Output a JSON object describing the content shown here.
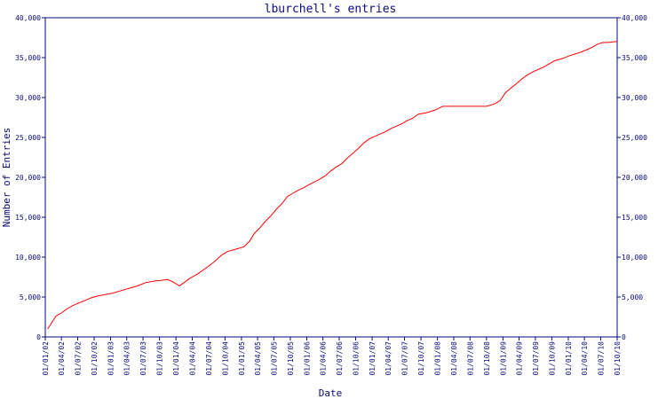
{
  "chart_data": {
    "type": "line",
    "title": "lburchell's entries",
    "xlabel": "Date",
    "ylabel": "Number of Entries",
    "ylim": [
      0,
      40000
    ],
    "y_ticks": [
      {
        "value": 0,
        "label": "0"
      },
      {
        "value": 5000,
        "label": "5,000"
      },
      {
        "value": 10000,
        "label": "10,000"
      },
      {
        "value": 15000,
        "label": "15,000"
      },
      {
        "value": 20000,
        "label": "20,000"
      },
      {
        "value": 25000,
        "label": "25,000"
      },
      {
        "value": 30000,
        "label": "30,000"
      },
      {
        "value": 35000,
        "label": "35,000"
      },
      {
        "value": 40000,
        "label": "40,000"
      }
    ],
    "x_range": [
      "2002-01-01",
      "2010-10-01"
    ],
    "x_ticks": [
      {
        "date": "2002-01-01",
        "label": "01/01/02"
      },
      {
        "date": "2002-04-01",
        "label": "01/04/02"
      },
      {
        "date": "2002-07-01",
        "label": "01/07/02"
      },
      {
        "date": "2002-10-01",
        "label": "01/10/02"
      },
      {
        "date": "2003-01-01",
        "label": "01/01/03"
      },
      {
        "date": "2003-04-01",
        "label": "01/04/03"
      },
      {
        "date": "2003-07-01",
        "label": "01/07/03"
      },
      {
        "date": "2003-10-01",
        "label": "01/10/03"
      },
      {
        "date": "2004-01-01",
        "label": "01/01/04"
      },
      {
        "date": "2004-04-01",
        "label": "01/04/04"
      },
      {
        "date": "2004-07-01",
        "label": "01/07/04"
      },
      {
        "date": "2004-10-01",
        "label": "01/10/04"
      },
      {
        "date": "2005-01-01",
        "label": "01/01/05"
      },
      {
        "date": "2005-04-01",
        "label": "01/04/05"
      },
      {
        "date": "2005-07-01",
        "label": "01/07/05"
      },
      {
        "date": "2005-10-01",
        "label": "01/10/05"
      },
      {
        "date": "2006-01-01",
        "label": "01/01/06"
      },
      {
        "date": "2006-04-01",
        "label": "01/04/06"
      },
      {
        "date": "2006-07-01",
        "label": "01/07/06"
      },
      {
        "date": "2006-10-01",
        "label": "01/10/06"
      },
      {
        "date": "2007-01-01",
        "label": "01/01/07"
      },
      {
        "date": "2007-04-01",
        "label": "01/04/07"
      },
      {
        "date": "2007-07-01",
        "label": "01/07/07"
      },
      {
        "date": "2007-10-01",
        "label": "01/10/07"
      },
      {
        "date": "2008-01-01",
        "label": "01/01/08"
      },
      {
        "date": "2008-04-01",
        "label": "01/04/08"
      },
      {
        "date": "2008-07-01",
        "label": "01/07/08"
      },
      {
        "date": "2008-10-01",
        "label": "01/10/08"
      },
      {
        "date": "2009-01-01",
        "label": "01/01/09"
      },
      {
        "date": "2009-04-01",
        "label": "01/04/09"
      },
      {
        "date": "2009-07-01",
        "label": "01/07/09"
      },
      {
        "date": "2009-10-01",
        "label": "01/10/09"
      },
      {
        "date": "2010-01-01",
        "label": "01/01/10"
      },
      {
        "date": "2010-04-01",
        "label": "01/04/10"
      },
      {
        "date": "2010-07-01",
        "label": "01/07/10"
      },
      {
        "date": "2010-10-01",
        "label": "01/10/10"
      }
    ],
    "series": [
      {
        "color": "#ff0000",
        "points": [
          [
            "2002-01-15",
            1000
          ],
          [
            "2002-03-01",
            2600
          ],
          [
            "2002-04-01",
            3000
          ],
          [
            "2002-05-01",
            3500
          ],
          [
            "2002-06-01",
            3900
          ],
          [
            "2002-07-01",
            4200
          ],
          [
            "2002-08-15",
            4600
          ],
          [
            "2002-09-15",
            4900
          ],
          [
            "2002-10-15",
            5100
          ],
          [
            "2002-12-01",
            5300
          ],
          [
            "2003-01-15",
            5500
          ],
          [
            "2003-03-01",
            5800
          ],
          [
            "2003-04-15",
            6100
          ],
          [
            "2003-06-01",
            6400
          ],
          [
            "2003-07-15",
            6800
          ],
          [
            "2003-09-01",
            7000
          ],
          [
            "2003-10-15",
            7100
          ],
          [
            "2003-11-15",
            7200
          ],
          [
            "2003-12-15",
            6900
          ],
          [
            "2004-01-20",
            6400
          ],
          [
            "2004-02-15",
            6800
          ],
          [
            "2004-03-15",
            7300
          ],
          [
            "2004-05-01",
            7900
          ],
          [
            "2004-06-15",
            8600
          ],
          [
            "2004-08-01",
            9400
          ],
          [
            "2004-09-15",
            10300
          ],
          [
            "2004-10-15",
            10700
          ],
          [
            "2004-12-01",
            11000
          ],
          [
            "2005-01-15",
            11300
          ],
          [
            "2005-02-15",
            12000
          ],
          [
            "2005-03-15",
            13000
          ],
          [
            "2005-04-15",
            13700
          ],
          [
            "2005-05-15",
            14500
          ],
          [
            "2005-06-15",
            15200
          ],
          [
            "2005-07-15",
            16000
          ],
          [
            "2005-08-15",
            16700
          ],
          [
            "2005-09-15",
            17600
          ],
          [
            "2005-10-15",
            18000
          ],
          [
            "2005-11-15",
            18400
          ],
          [
            "2005-12-15",
            18700
          ],
          [
            "2006-01-15",
            19100
          ],
          [
            "2006-03-01",
            19600
          ],
          [
            "2006-04-15",
            20200
          ],
          [
            "2006-05-15",
            20800
          ],
          [
            "2006-06-15",
            21300
          ],
          [
            "2006-07-15",
            21700
          ],
          [
            "2006-08-15",
            22400
          ],
          [
            "2006-09-15",
            23000
          ],
          [
            "2006-10-15",
            23600
          ],
          [
            "2006-11-15",
            24300
          ],
          [
            "2006-12-15",
            24800
          ],
          [
            "2007-02-01",
            25300
          ],
          [
            "2007-03-15",
            25700
          ],
          [
            "2007-04-15",
            26100
          ],
          [
            "2007-05-15",
            26400
          ],
          [
            "2007-06-15",
            26700
          ],
          [
            "2007-07-15",
            27100
          ],
          [
            "2007-08-15",
            27400
          ],
          [
            "2007-09-15",
            27900
          ],
          [
            "2007-11-01",
            28100
          ],
          [
            "2007-12-15",
            28400
          ],
          [
            "2008-02-01",
            28900
          ],
          [
            "2008-04-01",
            28900
          ],
          [
            "2008-07-01",
            28900
          ],
          [
            "2008-10-01",
            28900
          ],
          [
            "2008-11-15",
            29200
          ],
          [
            "2008-12-15",
            29600
          ],
          [
            "2009-01-15",
            30600
          ],
          [
            "2009-02-15",
            31200
          ],
          [
            "2009-03-15",
            31700
          ],
          [
            "2009-04-15",
            32300
          ],
          [
            "2009-05-15",
            32800
          ],
          [
            "2009-06-15",
            33200
          ],
          [
            "2009-07-15",
            33500
          ],
          [
            "2009-08-15",
            33800
          ],
          [
            "2009-09-15",
            34200
          ],
          [
            "2009-10-15",
            34600
          ],
          [
            "2009-12-01",
            34900
          ],
          [
            "2010-01-15",
            35300
          ],
          [
            "2010-03-01",
            35600
          ],
          [
            "2010-04-15",
            36000
          ],
          [
            "2010-05-15",
            36300
          ],
          [
            "2010-06-15",
            36700
          ],
          [
            "2010-07-15",
            36900
          ],
          [
            "2010-08-15",
            36900
          ],
          [
            "2010-09-15",
            37000
          ],
          [
            "2010-10-01",
            37000
          ]
        ]
      }
    ],
    "grid": false,
    "colors": {
      "axis": "#0a0a7a",
      "text": "#0a0a7a",
      "line": "#ff0000",
      "background": "#ffffff"
    }
  }
}
